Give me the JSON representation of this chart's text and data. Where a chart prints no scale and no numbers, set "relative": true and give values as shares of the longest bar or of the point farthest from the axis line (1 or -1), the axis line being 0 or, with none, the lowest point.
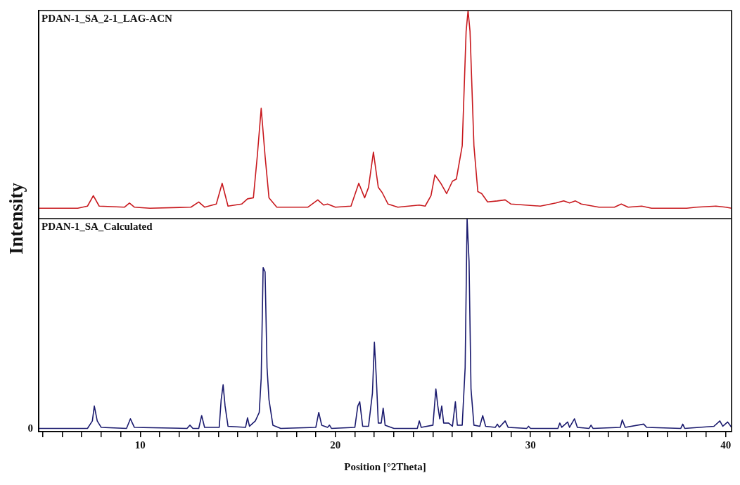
{
  "chart_data": [
    {
      "type": "line",
      "relative": true,
      "xlim": [
        4.8,
        40.3
      ],
      "tick_labels": false,
      "marker": "none",
      "ylabel": "Intensity",
      "series": [
        {
          "name": "PDAN-1_SA_2-1_LAG-ACN",
          "color": "#c8191e",
          "x": [
            4.8,
            6.8,
            7.3,
            7.6,
            7.9,
            9.2,
            9.45,
            9.7,
            10.5,
            12.6,
            13.0,
            13.3,
            13.9,
            14.2,
            14.5,
            15.2,
            15.5,
            15.8,
            16.0,
            16.2,
            16.4,
            16.6,
            17.0,
            18.6,
            19.1,
            19.4,
            19.6,
            20.0,
            20.8,
            21.2,
            21.5,
            21.7,
            21.95,
            22.2,
            22.4,
            22.7,
            23.2,
            24.3,
            24.6,
            24.9,
            25.1,
            25.4,
            25.7,
            26.0,
            26.2,
            26.5,
            26.7,
            26.8,
            26.9,
            27.1,
            27.3,
            27.5,
            27.8,
            28.3,
            28.7,
            29.0,
            30.5,
            31.3,
            31.7,
            32.0,
            32.3,
            32.6,
            33.5,
            34.3,
            34.65,
            35.0,
            35.7,
            36.2,
            38.0,
            38.5,
            39.5,
            40.0,
            40.3
          ],
          "values": [
            0.05,
            0.05,
            0.06,
            0.11,
            0.06,
            0.055,
            0.075,
            0.055,
            0.05,
            0.055,
            0.08,
            0.055,
            0.07,
            0.17,
            0.06,
            0.07,
            0.095,
            0.1,
            0.3,
            0.53,
            0.3,
            0.1,
            0.055,
            0.055,
            0.09,
            0.065,
            0.07,
            0.055,
            0.06,
            0.17,
            0.1,
            0.15,
            0.32,
            0.15,
            0.125,
            0.07,
            0.055,
            0.065,
            0.06,
            0.11,
            0.21,
            0.17,
            0.12,
            0.18,
            0.19,
            0.35,
            0.9,
            1,
            0.9,
            0.35,
            0.13,
            0.12,
            0.08,
            0.085,
            0.09,
            0.07,
            0.06,
            0.075,
            0.085,
            0.075,
            0.085,
            0.07,
            0.055,
            0.055,
            0.07,
            0.055,
            0.06,
            0.05,
            0.05,
            0.055,
            0.06,
            0.055,
            0.05
          ]
        }
      ]
    },
    {
      "type": "line",
      "relative": true,
      "xlim": [
        4.8,
        40.3
      ],
      "xticks": [
        {
          "value": 5,
          "label": null
        },
        {
          "value": 6,
          "label": null
        },
        {
          "value": 7,
          "label": null
        },
        {
          "value": 8,
          "label": null
        },
        {
          "value": 9,
          "label": null
        },
        10,
        {
          "value": 11,
          "label": null
        },
        {
          "value": 12,
          "label": null
        },
        {
          "value": 13,
          "label": null
        },
        {
          "value": 14,
          "label": null
        },
        {
          "value": 15,
          "label": null
        },
        {
          "value": 16,
          "label": null
        },
        {
          "value": 17,
          "label": null
        },
        {
          "value": 18,
          "label": null
        },
        {
          "value": 19,
          "label": null
        },
        20,
        {
          "value": 21,
          "label": null
        },
        {
          "value": 22,
          "label": null
        },
        {
          "value": 23,
          "label": null
        },
        {
          "value": 24,
          "label": null
        },
        {
          "value": 25,
          "label": null
        },
        {
          "value": 26,
          "label": null
        },
        {
          "value": 27,
          "label": null
        },
        {
          "value": 28,
          "label": null
        },
        {
          "value": 29,
          "label": null
        },
        30,
        {
          "value": 31,
          "label": null
        },
        {
          "value": 32,
          "label": null
        },
        {
          "value": 33,
          "label": null
        },
        {
          "value": 34,
          "label": null
        },
        {
          "value": 35,
          "label": null
        },
        {
          "value": 36,
          "label": null
        },
        {
          "value": 37,
          "label": null
        },
        {
          "value": 38,
          "label": null
        },
        {
          "value": 39,
          "label": null
        },
        40
      ],
      "annotations": [
        "0"
      ],
      "xlabel": "Position [°2Theta]",
      "marker": "none",
      "series": [
        {
          "name": "PDAN-1_SA_Calculated",
          "color": "#1a1a6e",
          "x": [
            4.8,
            7.3,
            7.55,
            7.65,
            7.8,
            8.0,
            9.3,
            9.5,
            9.7,
            12.4,
            12.55,
            12.7,
            13.0,
            13.15,
            13.3,
            14.05,
            14.15,
            14.25,
            14.35,
            14.5,
            15.4,
            15.5,
            15.6,
            15.9,
            16.1,
            16.2,
            16.3,
            16.4,
            16.5,
            16.6,
            16.8,
            17.2,
            19.0,
            19.15,
            19.3,
            19.6,
            19.7,
            19.8,
            21.0,
            21.15,
            21.25,
            21.4,
            21.7,
            21.9,
            22.0,
            22.1,
            22.2,
            22.35,
            22.45,
            22.55,
            23.0,
            24.2,
            24.3,
            24.4,
            25.0,
            25.15,
            25.25,
            25.35,
            25.45,
            25.55,
            25.8,
            26.0,
            26.15,
            26.25,
            26.5,
            26.65,
            26.75,
            26.85,
            26.95,
            27.1,
            27.4,
            27.55,
            27.7,
            28.2,
            28.3,
            28.4,
            28.7,
            28.85,
            29.8,
            29.9,
            30.0,
            31.4,
            31.5,
            31.6,
            31.9,
            32.0,
            32.25,
            32.4,
            33.0,
            33.1,
            33.2,
            34.6,
            34.7,
            34.85,
            35.8,
            35.95,
            37.7,
            37.8,
            37.9,
            39.4,
            39.7,
            39.85,
            40.1,
            40.3
          ],
          "values": [
            0.015,
            0.015,
            0.05,
            0.12,
            0.05,
            0.02,
            0.015,
            0.06,
            0.02,
            0.015,
            0.03,
            0.015,
            0.015,
            0.075,
            0.02,
            0.02,
            0.15,
            0.22,
            0.12,
            0.025,
            0.02,
            0.065,
            0.025,
            0.05,
            0.09,
            0.25,
            0.77,
            0.75,
            0.3,
            0.15,
            0.03,
            0.015,
            0.02,
            0.09,
            0.03,
            0.02,
            0.03,
            0.015,
            0.02,
            0.12,
            0.14,
            0.025,
            0.025,
            0.18,
            0.42,
            0.25,
            0.04,
            0.04,
            0.11,
            0.03,
            0.015,
            0.015,
            0.05,
            0.02,
            0.03,
            0.2,
            0.12,
            0.06,
            0.12,
            0.04,
            0.04,
            0.025,
            0.14,
            0.03,
            0.03,
            0.3,
            1,
            0.8,
            0.2,
            0.03,
            0.025,
            0.075,
            0.025,
            0.02,
            0.035,
            0.02,
            0.05,
            0.02,
            0.015,
            0.025,
            0.015,
            0.015,
            0.04,
            0.02,
            0.045,
            0.02,
            0.06,
            0.02,
            0.015,
            0.03,
            0.015,
            0.02,
            0.055,
            0.02,
            0.035,
            0.02,
            0.015,
            0.035,
            0.015,
            0.025,
            0.05,
            0.025,
            0.045,
            0.02
          ]
        }
      ]
    }
  ]
}
